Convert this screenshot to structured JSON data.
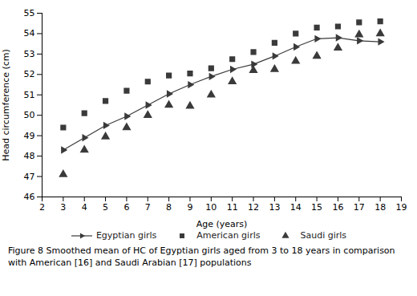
{
  "chart_data": {
    "type": "line",
    "caption": "Figure 8 Smoothed mean of HC of Egyptian girls aged from 3 to 18 years in comparison with American [16] and Saudi Arabian [17] populations",
    "xlabel": "Age (years)",
    "ylabel": "Head circumference (cm)",
    "x": [
      3,
      4,
      5,
      6,
      7,
      8,
      9,
      10,
      11,
      12,
      13,
      14,
      15,
      16,
      17,
      18
    ],
    "series": [
      {
        "name": "Egyptian girls",
        "type": "line",
        "marker": "triangle-right",
        "values": [
          48.3,
          48.9,
          49.5,
          49.95,
          50.5,
          51.05,
          51.5,
          51.9,
          52.25,
          52.5,
          52.9,
          53.35,
          53.75,
          53.8,
          53.65,
          53.6
        ]
      },
      {
        "name": "American girls",
        "type": "scatter",
        "marker": "square",
        "values": [
          49.4,
          50.1,
          50.7,
          51.2,
          51.65,
          51.95,
          52.05,
          52.3,
          52.75,
          53.1,
          53.55,
          54.0,
          54.3,
          54.35,
          54.55,
          54.6
        ]
      },
      {
        "name": "Saudi girls",
        "type": "scatter",
        "marker": "triangle",
        "values": [
          47.1,
          48.3,
          48.95,
          49.4,
          50.0,
          50.5,
          50.45,
          51.0,
          51.65,
          52.2,
          52.25,
          52.65,
          52.9,
          53.3,
          53.95,
          54.0
        ]
      }
    ],
    "color": "#3a3a3a",
    "xlim": [
      2,
      19
    ],
    "ylim": [
      46,
      55
    ],
    "xticks": [
      2,
      3,
      4,
      5,
      6,
      7,
      8,
      9,
      10,
      11,
      12,
      13,
      14,
      15,
      16,
      17,
      18,
      19
    ],
    "yticks": [
      46,
      47,
      48,
      49,
      50,
      51,
      52,
      53,
      54,
      55
    ],
    "grid": false,
    "legend": "bottom"
  }
}
